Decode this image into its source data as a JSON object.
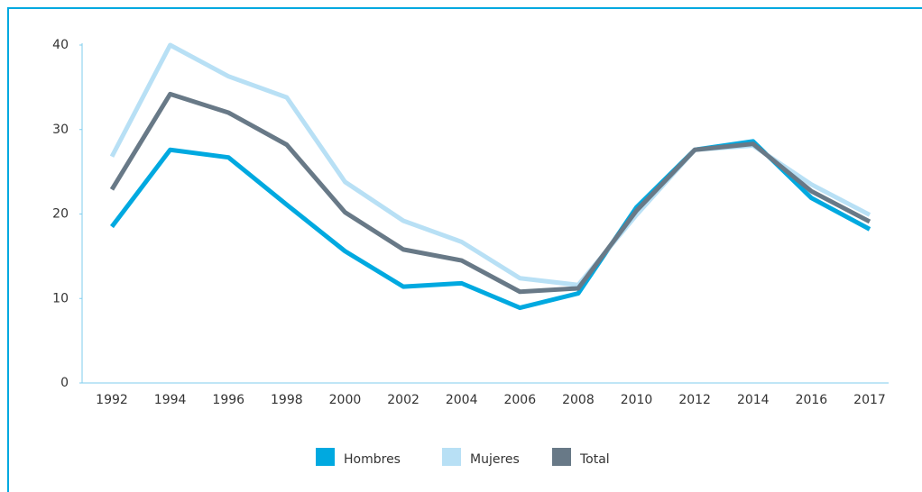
{
  "chart_data": {
    "type": "line",
    "categories": [
      "1992",
      "1994",
      "1996",
      "1998",
      "2000",
      "2002",
      "2004",
      "2006",
      "2008",
      "2010",
      "2012",
      "2014",
      "2016",
      "2017"
    ],
    "series": [
      {
        "name": "Hombres",
        "color": "#00a9e0",
        "values": [
          18.5,
          27.6,
          26.7,
          21.1,
          15.6,
          11.4,
          11.8,
          8.9,
          10.6,
          20.8,
          27.6,
          28.6,
          21.9,
          18.2
        ]
      },
      {
        "name": "Mujeres",
        "color": "#b8e0f5",
        "values": [
          26.8,
          40,
          36.3,
          33.8,
          23.8,
          19.2,
          16.7,
          12.4,
          11.6,
          19.9,
          27.6,
          28.1,
          23.5,
          19.9
        ]
      },
      {
        "name": "Total",
        "color": "#687987",
        "values": [
          22.9,
          34.2,
          32,
          28.2,
          20.2,
          15.8,
          14.5,
          10.8,
          11.2,
          20.4,
          27.6,
          28.3,
          22.7,
          19.1
        ]
      }
    ],
    "ylim": [
      0,
      40
    ],
    "yticks": [
      0,
      10,
      20,
      30,
      40
    ],
    "legend": "bottom"
  }
}
